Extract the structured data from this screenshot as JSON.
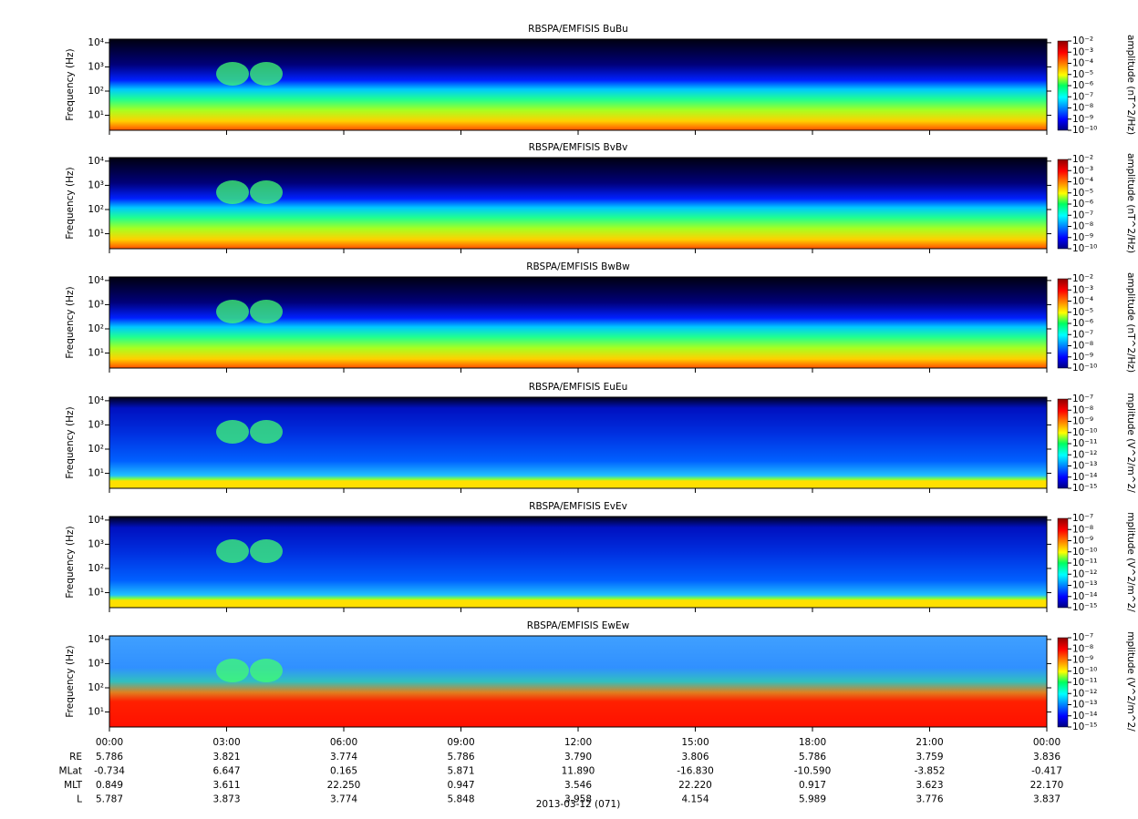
{
  "chart_data": [
    {
      "type": "spectrogram",
      "title": "RBSPA/EMFISIS  BuBu",
      "ylabel": "Frequency (Hz)",
      "yscale": "log",
      "ylim": [
        2.4,
        14000
      ],
      "yticks": [
        {
          "value": 10,
          "label": "10¹"
        },
        {
          "value": 100,
          "label": "10²"
        },
        {
          "value": 1000,
          "label": "10³"
        },
        {
          "value": 10000,
          "label": "10⁴"
        }
      ],
      "colorbar_label": "amplitude (nT^2/Hz)",
      "clim": [
        1e-10,
        0.01
      ],
      "cticks": [
        {
          "value": 0.01,
          "label": "10⁻²"
        },
        {
          "value": 0.001,
          "label": "10⁻³"
        },
        {
          "value": 0.0001,
          "label": "10⁻⁴"
        },
        {
          "value": 1e-05,
          "label": "10⁻⁵"
        },
        {
          "value": 1e-06,
          "label": "10⁻⁶"
        },
        {
          "value": 1e-07,
          "label": "10⁻⁷"
        },
        {
          "value": 1e-08,
          "label": "10⁻⁸"
        },
        {
          "value": 1e-09,
          "label": "10⁻⁹"
        },
        {
          "value": 1e-10,
          "label": "10⁻¹⁰"
        }
      ],
      "colormap": "jet"
    },
    {
      "type": "spectrogram",
      "title": "RBSPA/EMFISIS  BvBv",
      "ylabel": "Frequency (Hz)",
      "yscale": "log",
      "ylim": [
        2.4,
        14000
      ],
      "yticks": [
        {
          "value": 10,
          "label": "10¹"
        },
        {
          "value": 100,
          "label": "10²"
        },
        {
          "value": 1000,
          "label": "10³"
        },
        {
          "value": 10000,
          "label": "10⁴"
        }
      ],
      "colorbar_label": "amplitude (nT^2/Hz)",
      "clim": [
        1e-10,
        0.01
      ],
      "cticks": [
        {
          "value": 0.01,
          "label": "10⁻²"
        },
        {
          "value": 0.001,
          "label": "10⁻³"
        },
        {
          "value": 0.0001,
          "label": "10⁻⁴"
        },
        {
          "value": 1e-05,
          "label": "10⁻⁵"
        },
        {
          "value": 1e-06,
          "label": "10⁻⁶"
        },
        {
          "value": 1e-07,
          "label": "10⁻⁷"
        },
        {
          "value": 1e-08,
          "label": "10⁻⁸"
        },
        {
          "value": 1e-09,
          "label": "10⁻⁹"
        },
        {
          "value": 1e-10,
          "label": "10⁻¹⁰"
        }
      ],
      "colormap": "jet"
    },
    {
      "type": "spectrogram",
      "title": "RBSPA/EMFISIS  BwBw",
      "ylabel": "Frequency (Hz)",
      "yscale": "log",
      "ylim": [
        2.4,
        14000
      ],
      "yticks": [
        {
          "value": 10,
          "label": "10¹"
        },
        {
          "value": 100,
          "label": "10²"
        },
        {
          "value": 1000,
          "label": "10³"
        },
        {
          "value": 10000,
          "label": "10⁴"
        }
      ],
      "colorbar_label": "amplitude (nT^2/Hz)",
      "clim": [
        1e-10,
        0.01
      ],
      "cticks": [
        {
          "value": 0.01,
          "label": "10⁻²"
        },
        {
          "value": 0.001,
          "label": "10⁻³"
        },
        {
          "value": 0.0001,
          "label": "10⁻⁴"
        },
        {
          "value": 1e-05,
          "label": "10⁻⁵"
        },
        {
          "value": 1e-06,
          "label": "10⁻⁶"
        },
        {
          "value": 1e-07,
          "label": "10⁻⁷"
        },
        {
          "value": 1e-08,
          "label": "10⁻⁸"
        },
        {
          "value": 1e-09,
          "label": "10⁻⁹"
        },
        {
          "value": 1e-10,
          "label": "10⁻¹⁰"
        }
      ],
      "colormap": "jet"
    },
    {
      "type": "spectrogram",
      "title": "RBSPA/EMFISIS  EuEu",
      "ylabel": "Frequency (Hz)",
      "yscale": "log",
      "ylim": [
        2.4,
        14000
      ],
      "yticks": [
        {
          "value": 10,
          "label": "10¹"
        },
        {
          "value": 100,
          "label": "10²"
        },
        {
          "value": 1000,
          "label": "10³"
        },
        {
          "value": 10000,
          "label": "10⁴"
        }
      ],
      "colorbar_label": "mplitude (V^2/m^2/",
      "clim": [
        1e-15,
        1e-07
      ],
      "cticks": [
        {
          "value": 1e-07,
          "label": "10⁻⁷"
        },
        {
          "value": 1e-08,
          "label": "10⁻⁸"
        },
        {
          "value": 1e-09,
          "label": "10⁻⁹"
        },
        {
          "value": 1e-10,
          "label": "10⁻¹⁰"
        },
        {
          "value": 1e-11,
          "label": "10⁻¹¹"
        },
        {
          "value": 1e-12,
          "label": "10⁻¹²"
        },
        {
          "value": 1e-13,
          "label": "10⁻¹³"
        },
        {
          "value": 1e-14,
          "label": "10⁻¹⁴"
        },
        {
          "value": 1e-15,
          "label": "10⁻¹⁵"
        }
      ],
      "colormap": "jet"
    },
    {
      "type": "spectrogram",
      "title": "RBSPA/EMFISIS  EvEv",
      "ylabel": "Frequency (Hz)",
      "yscale": "log",
      "ylim": [
        2.4,
        14000
      ],
      "yticks": [
        {
          "value": 10,
          "label": "10¹"
        },
        {
          "value": 100,
          "label": "10²"
        },
        {
          "value": 1000,
          "label": "10³"
        },
        {
          "value": 10000,
          "label": "10⁴"
        }
      ],
      "colorbar_label": "mplitude (V^2/m^2/",
      "clim": [
        1e-15,
        1e-07
      ],
      "cticks": [
        {
          "value": 1e-07,
          "label": "10⁻⁷"
        },
        {
          "value": 1e-08,
          "label": "10⁻⁸"
        },
        {
          "value": 1e-09,
          "label": "10⁻⁹"
        },
        {
          "value": 1e-10,
          "label": "10⁻¹⁰"
        },
        {
          "value": 1e-11,
          "label": "10⁻¹¹"
        },
        {
          "value": 1e-12,
          "label": "10⁻¹²"
        },
        {
          "value": 1e-13,
          "label": "10⁻¹³"
        },
        {
          "value": 1e-14,
          "label": "10⁻¹⁴"
        },
        {
          "value": 1e-15,
          "label": "10⁻¹⁵"
        }
      ],
      "colormap": "jet"
    },
    {
      "type": "spectrogram",
      "title": "RBSPA/EMFISIS  EwEw",
      "ylabel": "Frequency (Hz)",
      "yscale": "log",
      "ylim": [
        2.4,
        14000
      ],
      "yticks": [
        {
          "value": 10,
          "label": "10¹"
        },
        {
          "value": 100,
          "label": "10²"
        },
        {
          "value": 1000,
          "label": "10³"
        },
        {
          "value": 10000,
          "label": "10⁴"
        }
      ],
      "colorbar_label": "mplitude (V^2/m^2/",
      "clim": [
        1e-15,
        1e-07
      ],
      "cticks": [
        {
          "value": 1e-07,
          "label": "10⁻⁷"
        },
        {
          "value": 1e-08,
          "label": "10⁻⁸"
        },
        {
          "value": 1e-09,
          "label": "10⁻⁹"
        },
        {
          "value": 1e-10,
          "label": "10⁻¹⁰"
        },
        {
          "value": 1e-11,
          "label": "10⁻¹¹"
        },
        {
          "value": 1e-12,
          "label": "10⁻¹²"
        },
        {
          "value": 1e-13,
          "label": "10⁻¹³"
        },
        {
          "value": 1e-14,
          "label": "10⁻¹⁴"
        },
        {
          "value": 1e-15,
          "label": "10⁻¹⁵"
        }
      ],
      "colormap": "jet",
      "xlabel": "2013-03-12 (071)",
      "xlim": [
        0,
        24
      ],
      "xticks": [
        {
          "value": 0,
          "label": "00:00"
        },
        {
          "value": 3,
          "label": "03:00"
        },
        {
          "value": 6,
          "label": "06:00"
        },
        {
          "value": 9,
          "label": "09:00"
        },
        {
          "value": 12,
          "label": "12:00"
        },
        {
          "value": 15,
          "label": "15:00"
        },
        {
          "value": 18,
          "label": "18:00"
        },
        {
          "value": 21,
          "label": "21:00"
        },
        {
          "value": 24,
          "label": "00:00"
        }
      ]
    }
  ],
  "ephemeris": {
    "rows": [
      {
        "label": "RE",
        "values": [
          "5.786",
          "3.821",
          "3.774",
          "5.786",
          "3.790",
          "3.806",
          "5.786",
          "3.759",
          "3.836"
        ]
      },
      {
        "label": "MLat",
        "values": [
          "-0.734",
          "6.647",
          "0.165",
          "5.871",
          "11.890",
          "-16.830",
          "-10.590",
          "-3.852",
          "-0.417"
        ]
      },
      {
        "label": "MLT",
        "values": [
          "0.849",
          "3.611",
          "22.250",
          "0.947",
          "3.546",
          "22.220",
          "0.917",
          "3.623",
          "22.170"
        ]
      },
      {
        "label": "L",
        "values": [
          "5.787",
          "3.873",
          "3.774",
          "5.848",
          "3.958",
          "4.154",
          "5.989",
          "3.776",
          "3.837"
        ]
      }
    ]
  }
}
